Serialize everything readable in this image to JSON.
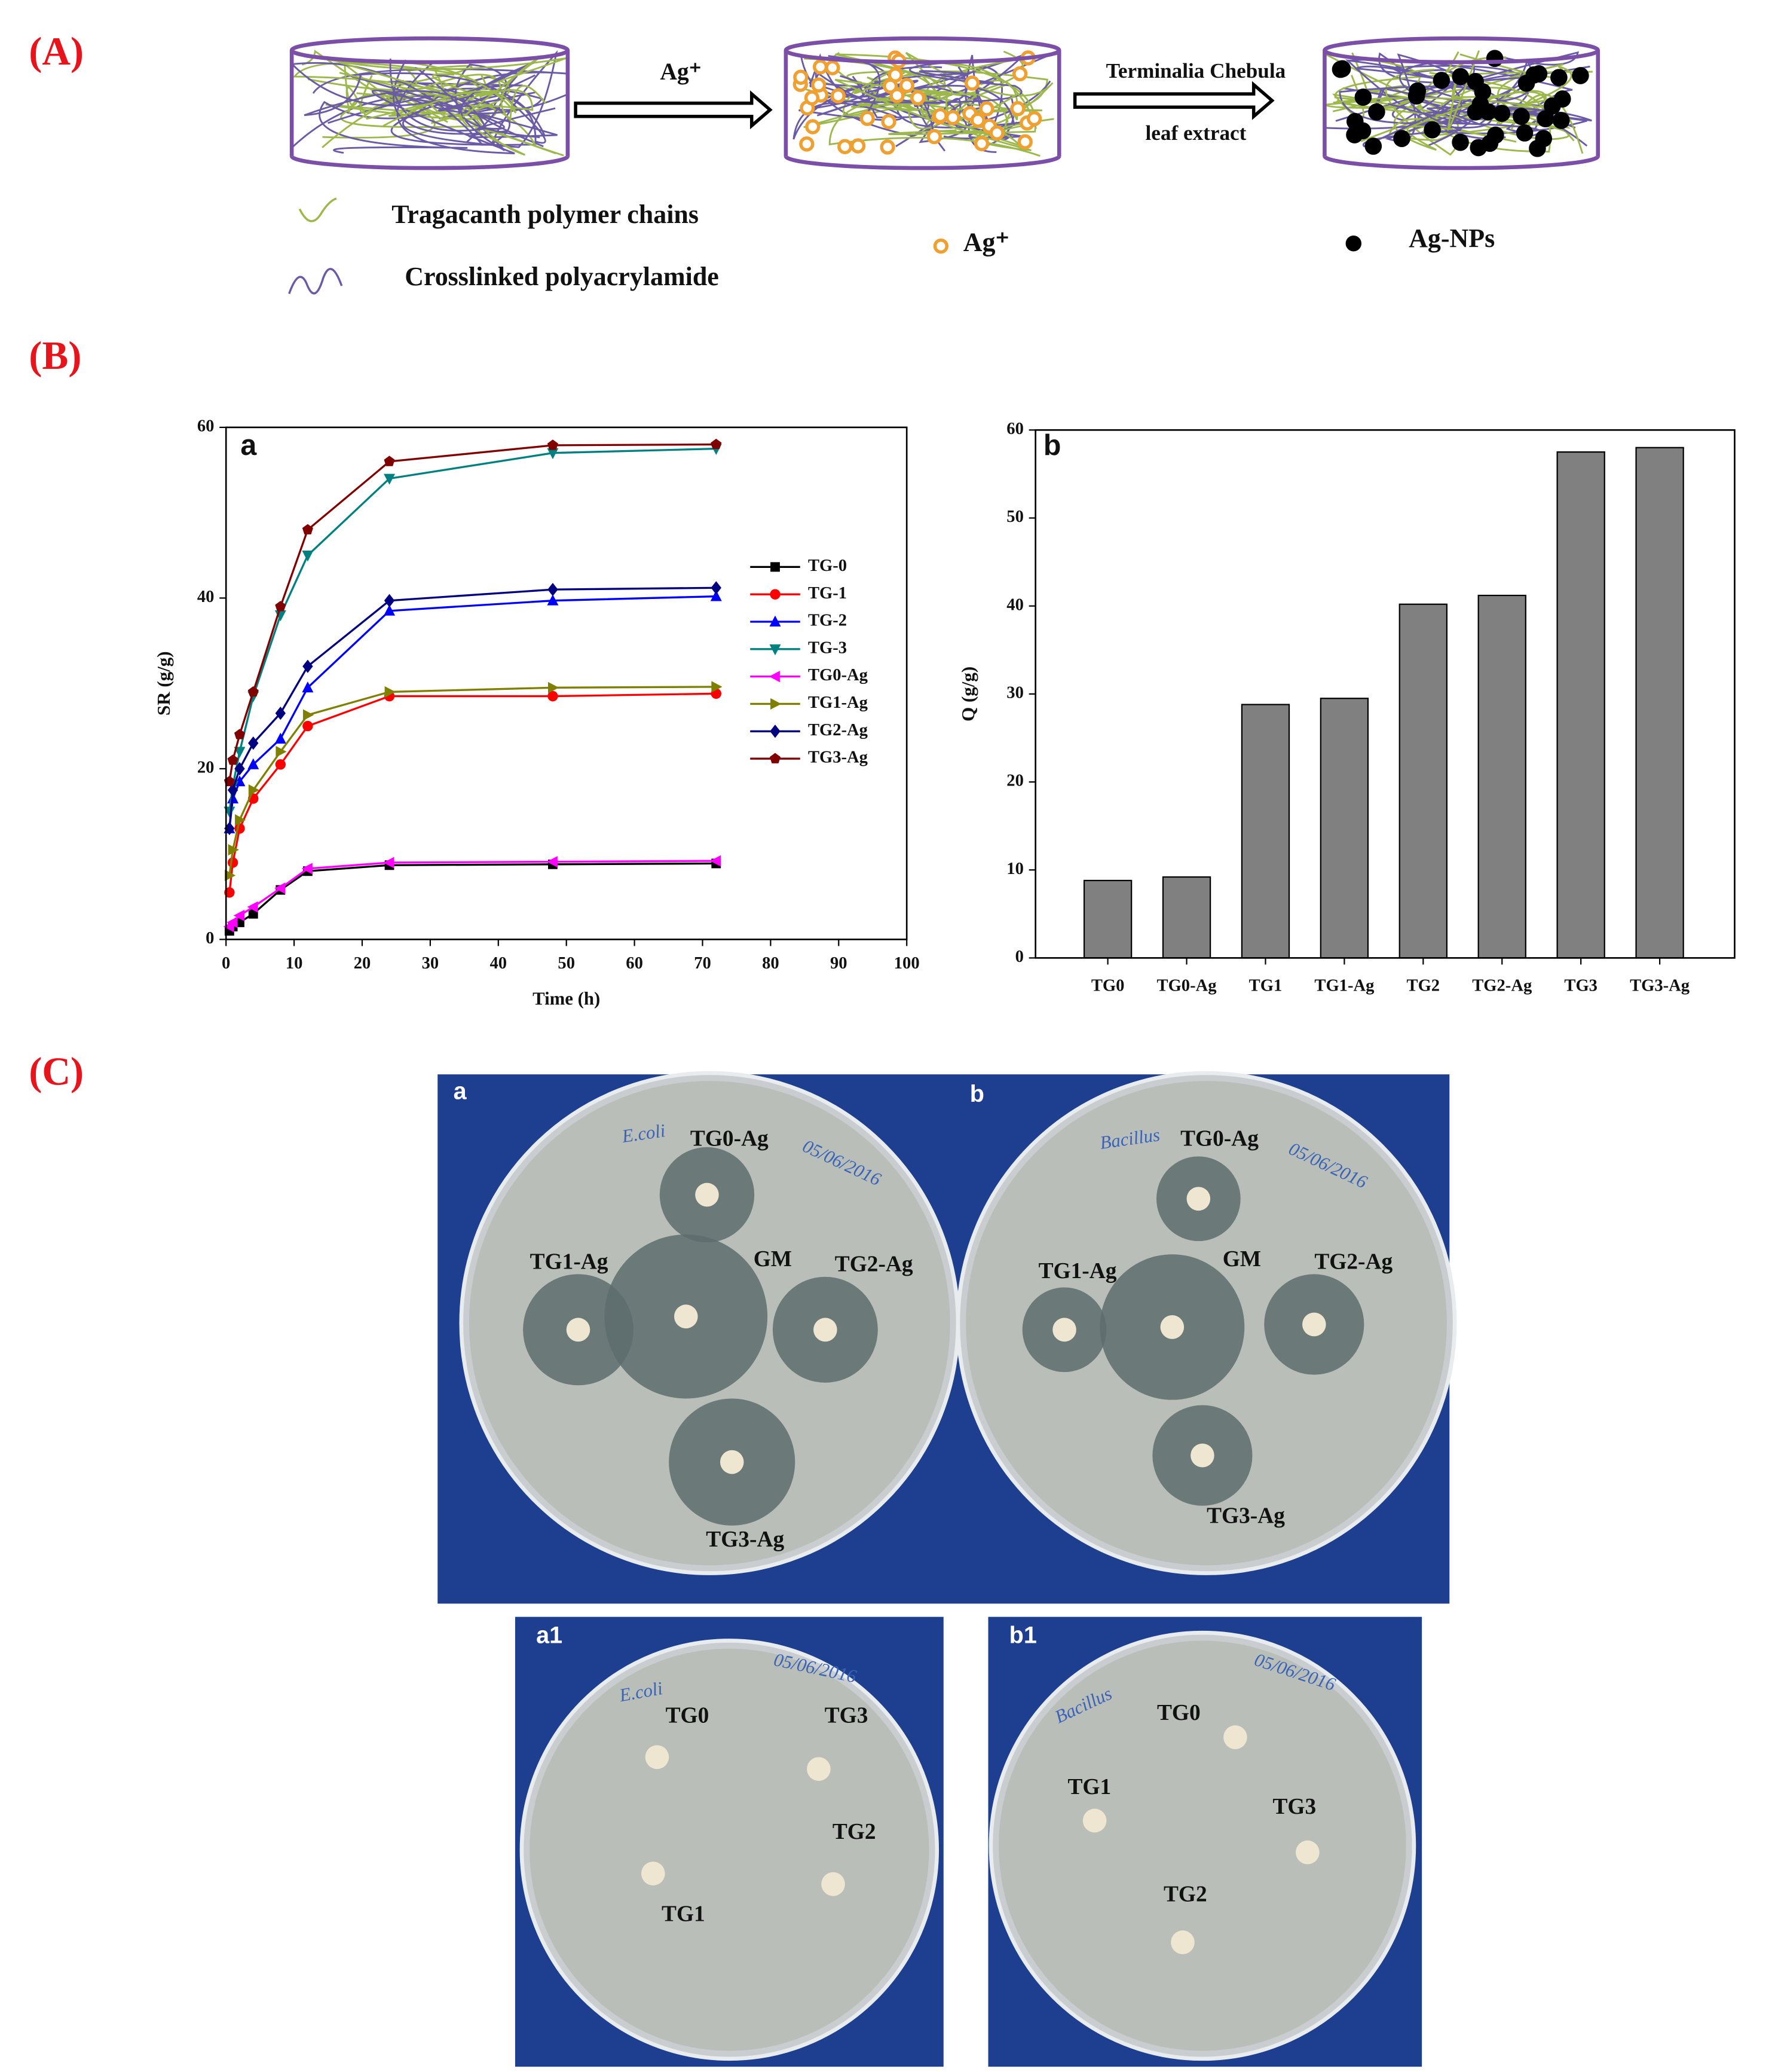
{
  "panels": {
    "A": "(A)",
    "B": "(B)",
    "C": "(C)"
  },
  "schematic": {
    "step1": "Ag⁺",
    "step2_line1": "Terminalia Chebula",
    "step2_line2": "leaf extract",
    "legend": [
      "Tragacanth polymer chains",
      "Crosslinked polyacrylamide",
      "Ag⁺",
      "Ag-NPs"
    ]
  },
  "chart_data": [
    {
      "type": "line",
      "panel_label": "a",
      "x_label": "Time (h)",
      "y_label": "SR (g/g)",
      "x": [
        0.5,
        1,
        2,
        4,
        8,
        12,
        24,
        48,
        72
      ],
      "series": [
        {
          "name": "TG-0",
          "color": "#000000",
          "marker": "square",
          "values": [
            1,
            1.5,
            2,
            3,
            5.8,
            8,
            8.7,
            8.8,
            8.9
          ]
        },
        {
          "name": "TG-1",
          "color": "#ff0000",
          "marker": "circle",
          "values": [
            5.5,
            9,
            13,
            16.5,
            20.5,
            25,
            28.5,
            28.5,
            28.8
          ]
        },
        {
          "name": "TG-2",
          "color": "#0000ff",
          "marker": "triangle-up",
          "values": [
            13,
            16.5,
            18.5,
            20.5,
            23.5,
            29.5,
            38.5,
            39.7,
            40.2
          ]
        },
        {
          "name": "TG-3",
          "color": "#008080",
          "marker": "triangle-down",
          "values": [
            15,
            18,
            22,
            28.5,
            38,
            45,
            54,
            57,
            57.5
          ]
        },
        {
          "name": "TG0-Ag",
          "color": "#ff00ff",
          "marker": "triangle-left",
          "values": [
            1.5,
            2,
            2.8,
            3.8,
            6,
            8.3,
            9,
            9.1,
            9.2
          ]
        },
        {
          "name": "TG1-Ag",
          "color": "#808000",
          "marker": "triangle-right",
          "values": [
            7.5,
            10.5,
            14,
            17.5,
            22,
            26.3,
            29,
            29.5,
            29.6
          ]
        },
        {
          "name": "TG2-Ag",
          "color": "#000080",
          "marker": "diamond",
          "values": [
            13,
            17.5,
            20,
            23,
            26.5,
            32,
            39.7,
            41,
            41.2
          ]
        },
        {
          "name": "TG3-Ag",
          "color": "#800000",
          "marker": "pentagon",
          "values": [
            18.5,
            21,
            24,
            29,
            39,
            48,
            56,
            57.9,
            58
          ]
        }
      ],
      "xlim": [
        0,
        100
      ],
      "xticks": [
        0,
        10,
        20,
        30,
        40,
        50,
        60,
        70,
        80,
        90,
        100
      ],
      "ylim": [
        0,
        60
      ],
      "yticks": [
        0,
        20,
        40,
        60
      ],
      "legend": "right"
    },
    {
      "type": "bar",
      "panel_label": "b",
      "y_label": "Q (g/g)",
      "categories": [
        "TG0",
        "TG0-Ag",
        "TG1",
        "TG1-Ag",
        "TG2",
        "TG2-Ag",
        "TG3",
        "TG3-Ag"
      ],
      "values": [
        8.8,
        9.2,
        28.8,
        29.5,
        40.2,
        41.2,
        57.5,
        58
      ],
      "color": "#808080",
      "ylim": [
        0,
        60
      ],
      "yticks": [
        0,
        10,
        20,
        30,
        40,
        50,
        60
      ]
    }
  ],
  "photos": [
    {
      "tag": "a",
      "handwriting": [
        "E.coli",
        "05/06/2016"
      ],
      "labels": [
        "TG0-Ag",
        "TG1-Ag",
        "GM",
        "TG2-Ag",
        "TG3-Ag"
      ]
    },
    {
      "tag": "b",
      "handwriting": [
        "Bacillus",
        "05/06/2016"
      ],
      "labels": [
        "TG0-Ag",
        "TG1-Ag",
        "GM",
        "TG2-Ag",
        "TG3-Ag"
      ]
    },
    {
      "tag": "a1",
      "handwriting": [
        "E.coli",
        "05/06/2016"
      ],
      "labels": [
        "TG0",
        "TG3",
        "TG2",
        "TG1"
      ]
    },
    {
      "tag": "b1",
      "handwriting": [
        "Bacillus",
        "05/06/2016"
      ],
      "labels": [
        "TG0",
        "TG1",
        "TG3",
        "TG2"
      ]
    }
  ]
}
